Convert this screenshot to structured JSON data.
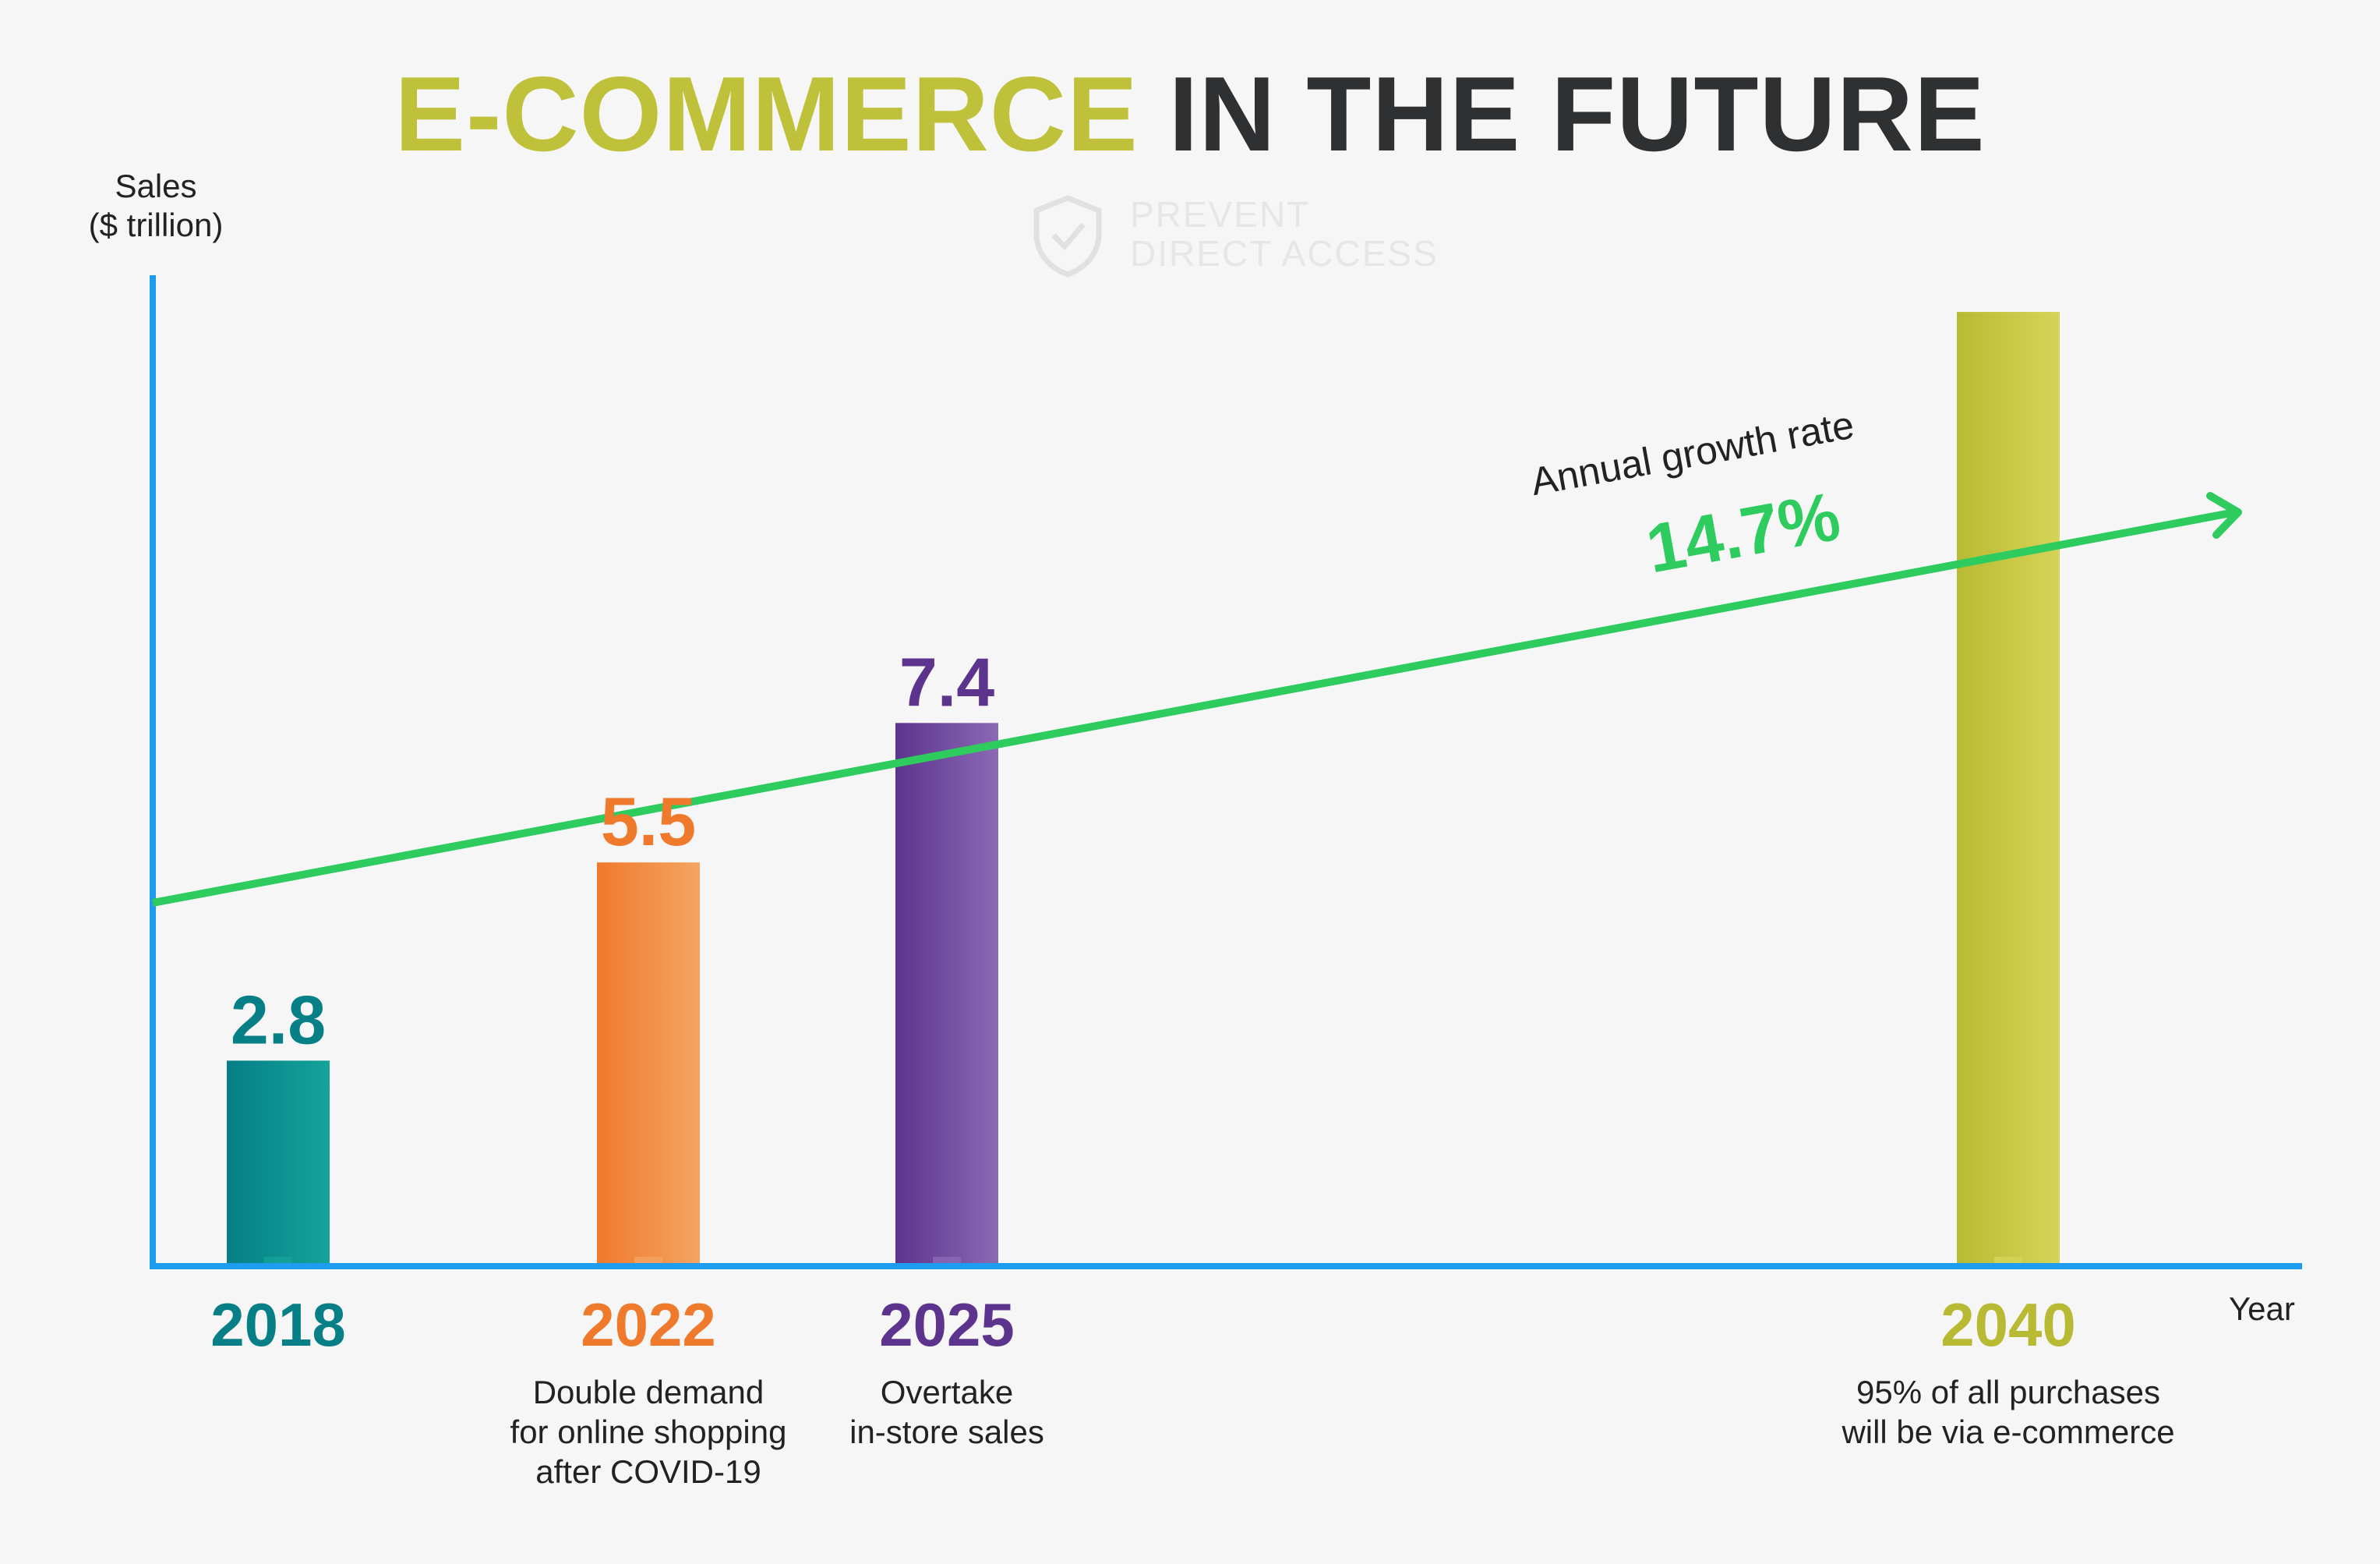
{
  "chart_data": {
    "type": "bar",
    "title_part1": "E-COMMERCE",
    "title_part2": "IN THE FUTURE",
    "ylabel_line1": "Sales",
    "ylabel_line2": "($ trillion)",
    "xlabel": "Year",
    "categories": [
      "2018",
      "2022",
      "2025",
      "2040"
    ],
    "values": [
      2.8,
      5.5,
      7.4,
      13.0
    ],
    "value_labels": [
      "2.8",
      "5.5",
      "7.4",
      ""
    ],
    "annotations": [
      [],
      [
        "Double demand",
        "for online shopping",
        "after COVID-19"
      ],
      [
        "Overtake",
        "in-store sales"
      ],
      [
        "95% of all purchases",
        "will be via e-commerce"
      ]
    ],
    "colors": {
      "2018": [
        "#067f86",
        "#14a39a"
      ],
      "2022": [
        "#ef7a2c",
        "#f4a462"
      ],
      "2025": [
        "#5d348d",
        "#8c69b5"
      ],
      "2040": [
        "#b9ba33",
        "#d6d458"
      ]
    },
    "trend": {
      "label": "Annual growth rate",
      "value": "14.7%",
      "color": "#2ecc5f"
    },
    "axis_color": "#1e9cf0",
    "ylim": [
      0,
      13.5
    ],
    "grid": false
  },
  "watermark": {
    "line1": "PREVENT",
    "line2": "DIRECT ACCESS"
  }
}
